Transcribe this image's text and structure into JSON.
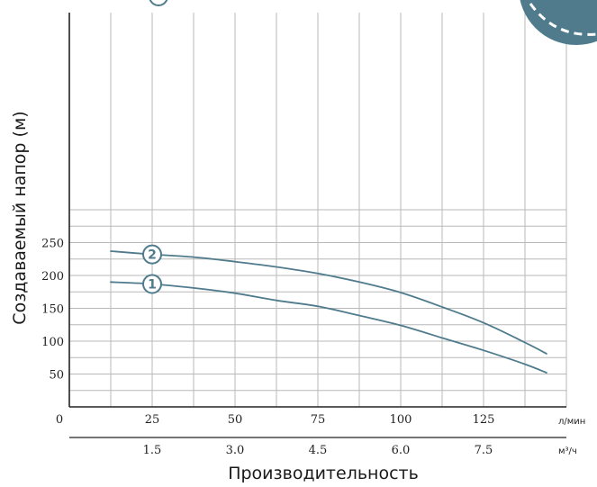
{
  "chart_data": {
    "type": "line",
    "ylabel": "Создаваемый напор (м)",
    "xlabel": "Производительность",
    "x_unit_primary": "л/мин",
    "x_unit_secondary": "м³/ч",
    "x_origin_label": "0",
    "xlim": [
      0,
      150
    ],
    "ylim": [
      0,
      300
    ],
    "x_ticks": [
      25,
      50,
      75,
      100,
      125
    ],
    "x_tick_labels": [
      "25",
      "50",
      "75",
      "100",
      "125"
    ],
    "x_secondary_tick_labels": [
      "1.5",
      "3.0",
      "4.5",
      "6.0",
      "7.5"
    ],
    "y_ticks": [
      50,
      100,
      150,
      200,
      250
    ],
    "y_tick_labels": [
      "50",
      "100",
      "150",
      "200",
      "250"
    ],
    "grid": true,
    "series": [
      {
        "name": "1",
        "color": "#4f7b8d",
        "label_at": [
          25,
          187
        ],
        "x": [
          12.5,
          25,
          37.5,
          50,
          62.5,
          75,
          87.5,
          100,
          112.5,
          125,
          137.5,
          144
        ],
        "y": [
          190,
          187,
          181,
          173,
          162,
          153,
          139,
          124,
          105,
          86,
          65,
          52
        ]
      },
      {
        "name": "2",
        "color": "#4f7b8d",
        "label_at": [
          25,
          232
        ],
        "x": [
          12.5,
          25,
          37.5,
          50,
          62.5,
          75,
          87.5,
          100,
          112.5,
          125,
          137.5,
          144
        ],
        "y": [
          237,
          232,
          228,
          221,
          213,
          203,
          190,
          174,
          152,
          128,
          98,
          81
        ]
      }
    ],
    "colors": {
      "curve": "#4f7b8d",
      "grid": "#b8b8b8",
      "axis": "#222222",
      "label_stroke": "#4f7b8d",
      "label_fill": "#ffffff",
      "badge": "#4f7b8d"
    }
  }
}
